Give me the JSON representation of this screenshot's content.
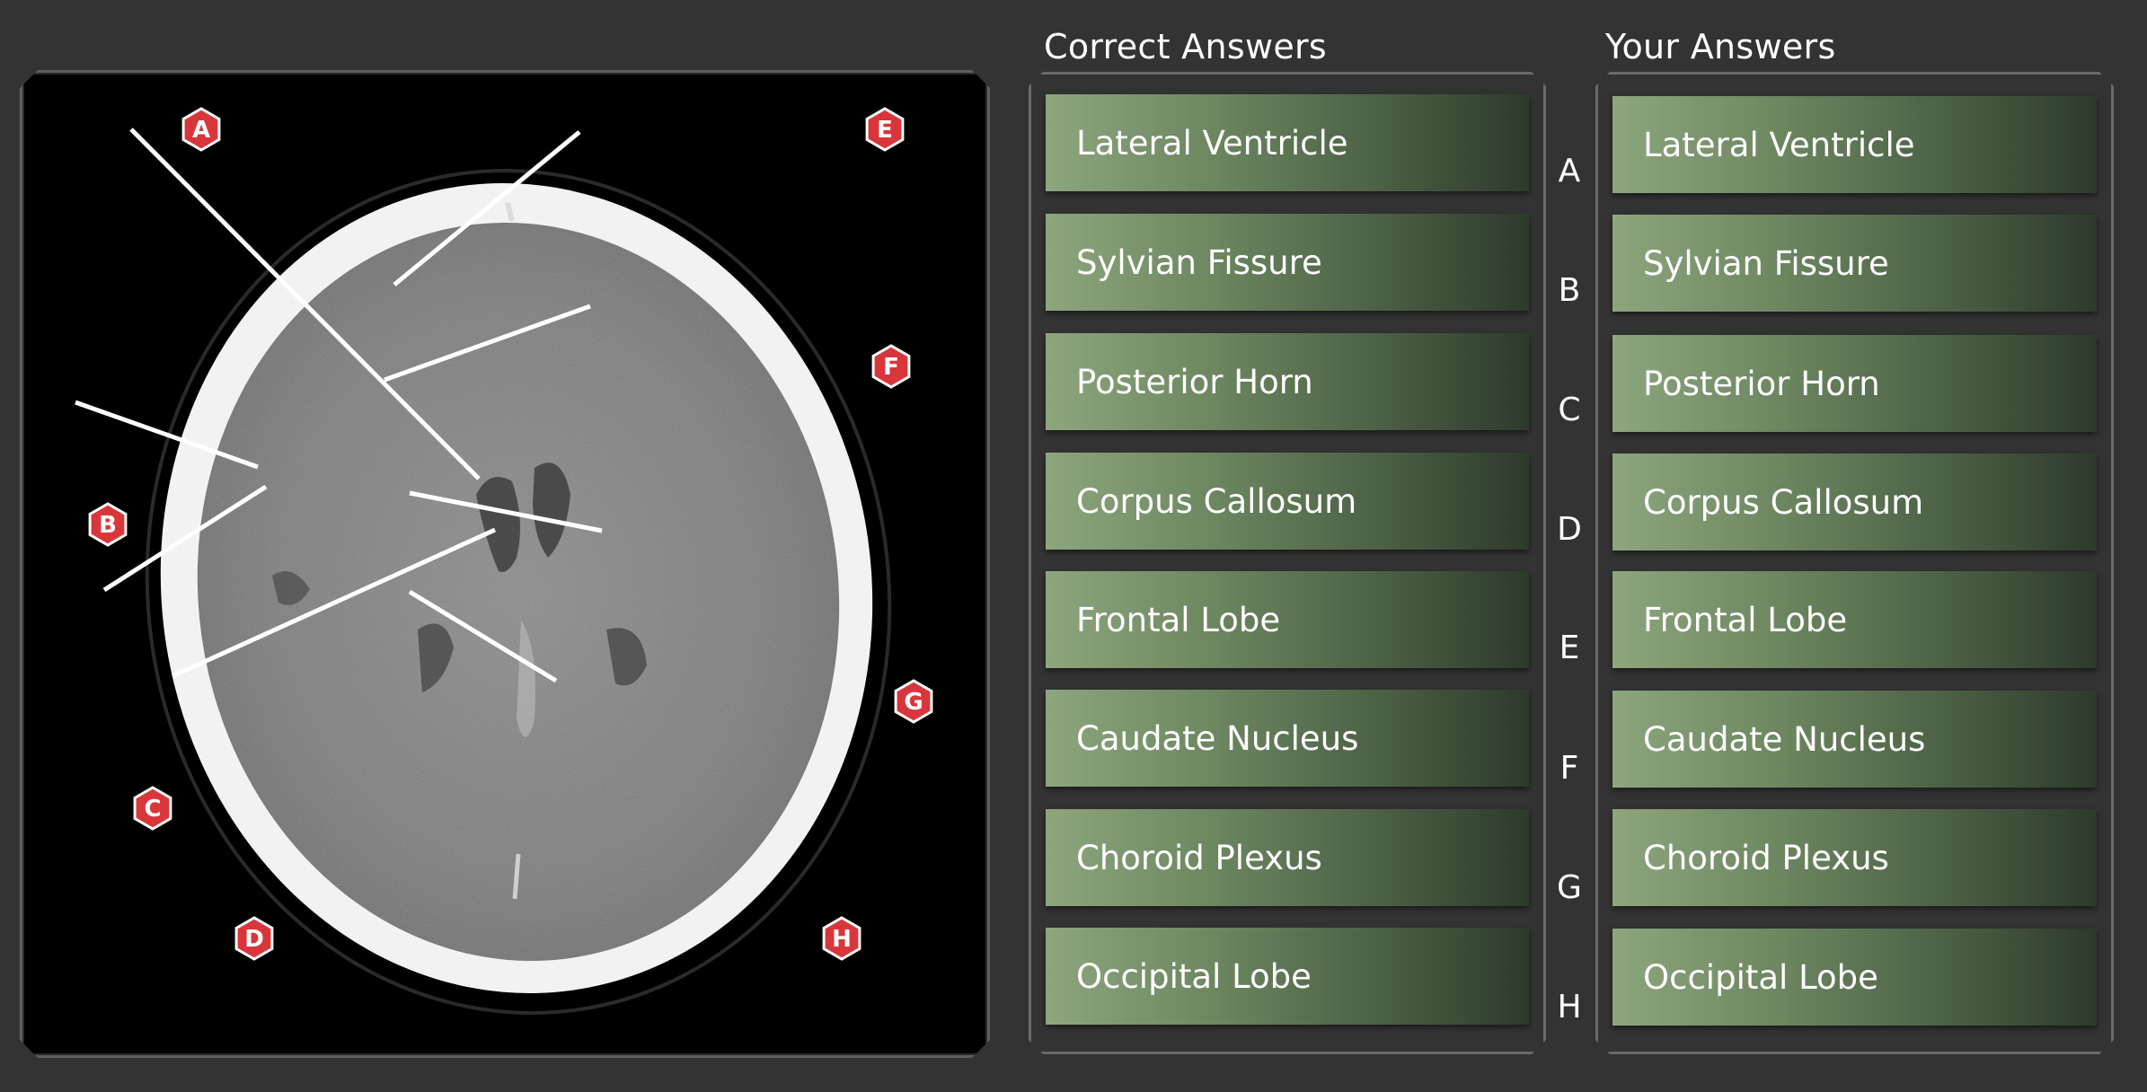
{
  "labels": [
    "A",
    "B",
    "C",
    "D",
    "E",
    "F",
    "G",
    "H"
  ],
  "correct": {
    "title": "Correct Answers",
    "items": [
      "Lateral Ventricle",
      "Sylvian Fissure",
      "Posterior Horn",
      "Corpus Callosum",
      "Frontal Lobe",
      "Caudate Nucleus",
      "Choroid Plexus",
      "Occipital Lobe"
    ]
  },
  "yours": {
    "title": "Your Answers",
    "items": [
      "Lateral Ventricle",
      "Sylvian Fissure",
      "Posterior Horn",
      "Corpus Callosum",
      "Frontal Lobe",
      "Caudate Nucleus",
      "Choroid Plexus",
      "Occipital Lobe"
    ]
  },
  "colors": {
    "marker": "#d9363b",
    "answer_start": "#8ea67e",
    "answer_end": "#2d3a2c"
  }
}
